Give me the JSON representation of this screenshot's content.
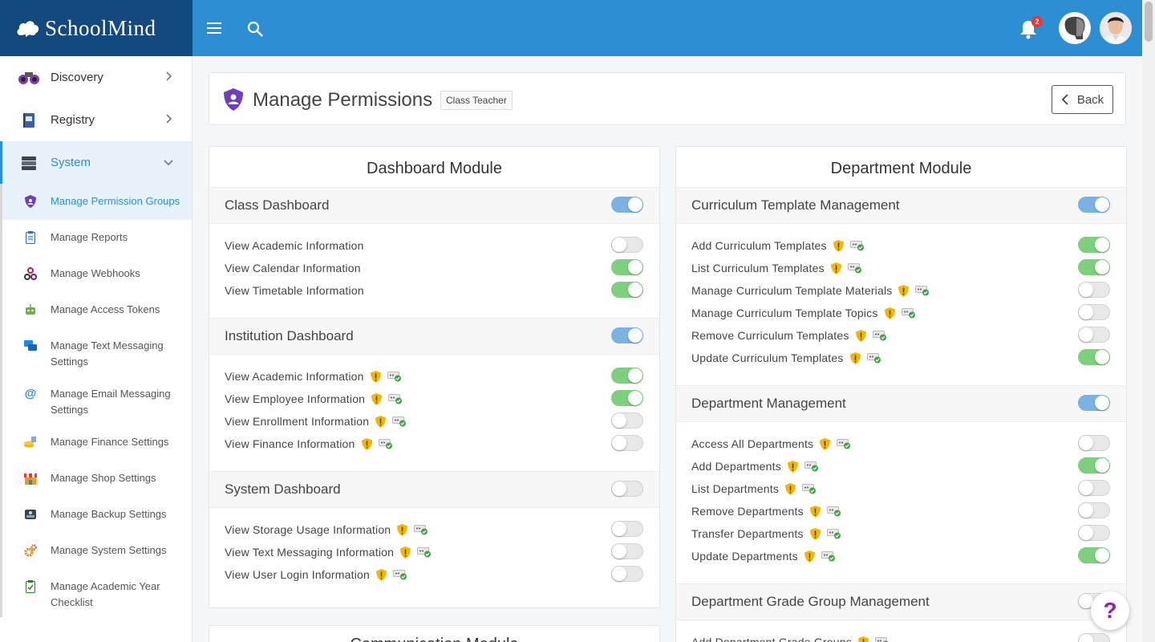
{
  "brand": {
    "name": "SchoolMind"
  },
  "notifications": {
    "count": "2"
  },
  "sidebar": {
    "top": [
      {
        "label": "Discovery",
        "icon": "binoculars-icon"
      },
      {
        "label": "Registry",
        "icon": "book-icon"
      },
      {
        "label": "System",
        "icon": "server-icon"
      }
    ],
    "sub": [
      {
        "label": "Manage Permission Groups",
        "icon": "shield-user-icon"
      },
      {
        "label": "Manage Reports",
        "icon": "clipboard-icon"
      },
      {
        "label": "Manage Webhooks",
        "icon": "webhook-icon"
      },
      {
        "label": "Manage Access Tokens",
        "icon": "robot-icon"
      },
      {
        "label": "Manage Text Messaging Settings",
        "icon": "chat-bubbles-icon"
      },
      {
        "label": "Manage Email Messaging Settings",
        "icon": "at-sign-icon"
      },
      {
        "label": "Manage Finance Settings",
        "icon": "coins-icon"
      },
      {
        "label": "Manage Shop Settings",
        "icon": "shop-icon"
      },
      {
        "label": "Manage Backup Settings",
        "icon": "hard-drive-icon"
      },
      {
        "label": "Manage System Settings",
        "icon": "gears-icon"
      },
      {
        "label": "Manage Academic Year Checklist",
        "icon": "checklist-icon"
      }
    ]
  },
  "header": {
    "title": "Manage Permissions",
    "role": "Class Teacher",
    "back_label": "Back"
  },
  "dashboard": {
    "title": "Dashboard Module",
    "groups": [
      {
        "name": "Class Dashboard",
        "enabled": true,
        "perms": [
          {
            "label": "View Academic Information",
            "on": false
          },
          {
            "label": "View Calendar Information",
            "on": true
          },
          {
            "label": "View Timetable Information",
            "on": true
          }
        ]
      },
      {
        "name": "Institution Dashboard",
        "enabled": true,
        "perms": [
          {
            "label": "View Academic Information",
            "on": true
          },
          {
            "label": "View Employee Information",
            "on": true
          },
          {
            "label": "View Enrollment Information",
            "on": false
          },
          {
            "label": "View Finance Information",
            "on": false
          }
        ]
      },
      {
        "name": "System Dashboard",
        "enabled": false,
        "perms": [
          {
            "label": "View Storage Usage Information",
            "on": false
          },
          {
            "label": "View Text Messaging Information",
            "on": false
          },
          {
            "label": "View User Login Information",
            "on": false
          }
        ]
      }
    ]
  },
  "department": {
    "title": "Department Module",
    "groups": [
      {
        "name": "Curriculum Template Management",
        "enabled": true,
        "perms": [
          {
            "label": "Add Curriculum Templates",
            "on": true
          },
          {
            "label": "List Curriculum Templates",
            "on": true
          },
          {
            "label": "Manage Curriculum Template Materials",
            "on": false
          },
          {
            "label": "Manage Curriculum Template Topics",
            "on": false
          },
          {
            "label": "Remove Curriculum Templates",
            "on": false
          },
          {
            "label": "Update Curriculum Templates",
            "on": true
          }
        ]
      },
      {
        "name": "Department Management",
        "enabled": true,
        "perms": [
          {
            "label": "Access All Departments",
            "on": false
          },
          {
            "label": "Add Departments",
            "on": true
          },
          {
            "label": "List Departments",
            "on": false
          },
          {
            "label": "Remove Departments",
            "on": false
          },
          {
            "label": "Transfer Departments",
            "on": false
          },
          {
            "label": "Update Departments",
            "on": true
          }
        ]
      },
      {
        "name": "Department Grade Group Management",
        "enabled": false,
        "perms": [
          {
            "label": "Add Department Grade Groups",
            "on": false
          }
        ]
      }
    ]
  },
  "communication": {
    "title": "Communication Module"
  },
  "help": {
    "label": "?"
  },
  "colors": {
    "topbar": "#2d8ed4",
    "brand": "#14497f",
    "toggle_on": "#7ed07e",
    "toggle_group": "#7ab3e3",
    "warning": "#f2b705",
    "help": "#8e24aa"
  }
}
